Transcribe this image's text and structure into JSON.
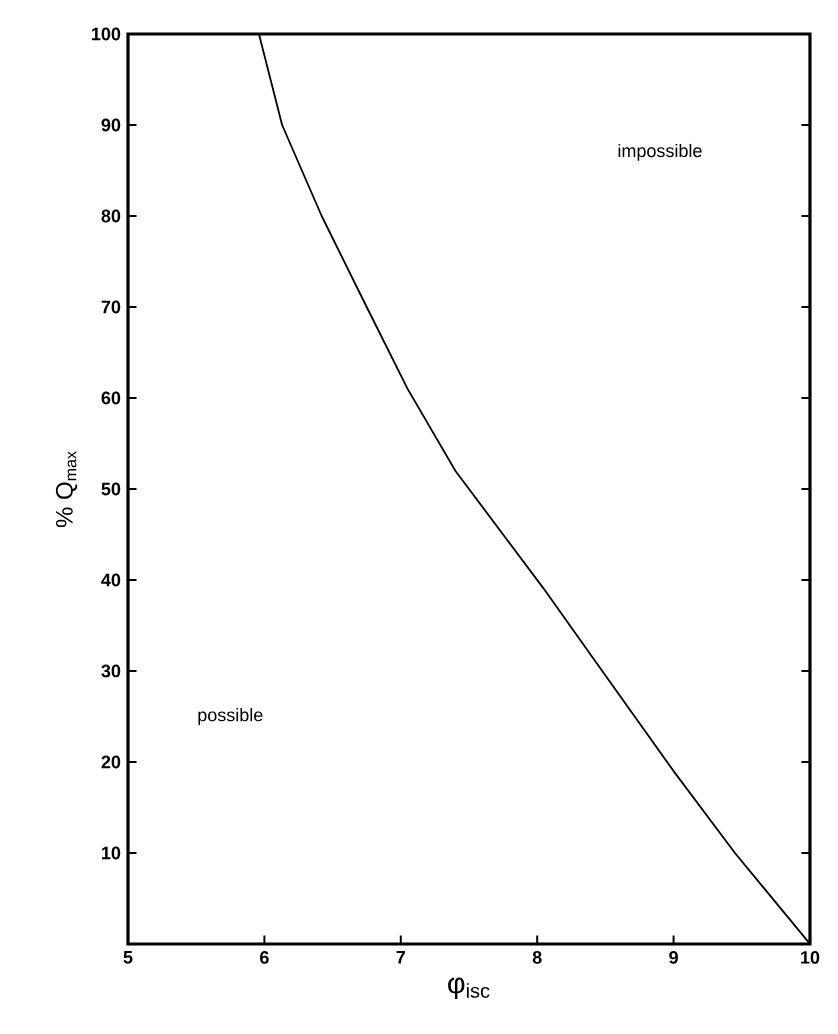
{
  "chart_data": {
    "type": "line",
    "xlabel": "φ$_{isc}$",
    "ylabel": "% Q$_{max}$",
    "x": [
      5.96,
      6.13,
      6.42,
      6.75,
      7.05,
      7.4,
      7.75,
      8.05,
      8.43,
      9.0,
      9.45,
      10
    ],
    "series": [
      {
        "color": "#000000",
        "values": [
          100,
          90,
          80,
          70,
          61,
          52,
          45,
          39,
          31,
          19,
          10,
          0
        ]
      }
    ],
    "xlim": [
      5,
      10
    ],
    "ylim": [
      0,
      100
    ],
    "xticks": [
      5,
      6,
      7,
      8,
      9,
      10
    ],
    "yticks": [
      10,
      20,
      30,
      40,
      50,
      60,
      70,
      80,
      90,
      100
    ],
    "annotations": [
      "impossible",
      "possible"
    ],
    "grid": false,
    "marker": "none",
    "line_style": "solid"
  }
}
